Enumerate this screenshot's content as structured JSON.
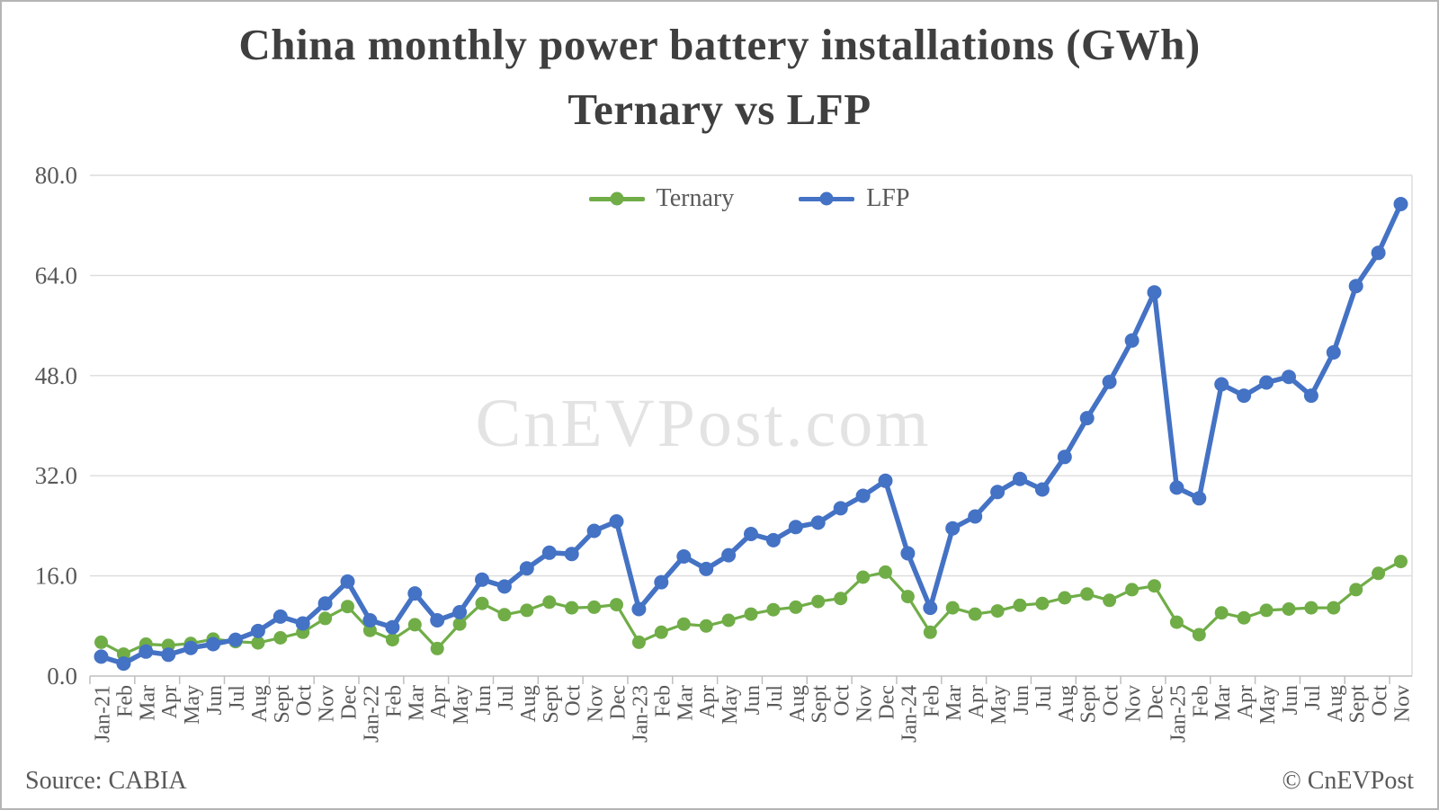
{
  "title": {
    "line1": "China monthly power battery installations (GWh)",
    "line2": "Ternary vs LFP"
  },
  "legend": [
    {
      "label": "Ternary",
      "color": "#70AD47"
    },
    {
      "label": "LFP",
      "color": "#4472C4"
    }
  ],
  "watermark": "CnEVPost.com",
  "footer": {
    "source": "Source: CABIA",
    "copyright": "© CnEVPost"
  },
  "colors": {
    "ternary": "#70AD47",
    "lfp": "#4472C4",
    "grid": "#dcdcdc",
    "axis": "#bfbfbf",
    "tick_text": "#595959",
    "title_text": "#3f3f3f",
    "watermark": "#e3e3e3",
    "border": "#b5b5b5"
  },
  "chart_data": {
    "type": "line",
    "title": "China monthly power battery installations (GWh) Ternary vs LFP",
    "xlabel": "",
    "ylabel": "",
    "ylim": [
      0,
      80
    ],
    "yticks": [
      0,
      16,
      32,
      48,
      64,
      80
    ],
    "ytick_format": "one_decimal",
    "grid": "horizontal",
    "legend_position": "top-center",
    "x_tick_interval": 2,
    "categories": [
      "Jan-21",
      "Feb",
      "Mar",
      "Apr",
      "May",
      "Jun",
      "Jul",
      "Aug",
      "Sept",
      "Oct",
      "Nov",
      "Dec",
      "Jan-22",
      "Feb",
      "Mar",
      "Apr",
      "May",
      "Jun",
      "Jul",
      "Aug",
      "Sept",
      "Oct",
      "Nov",
      "Dec",
      "Jan-23",
      "Feb",
      "Mar",
      "Apr",
      "May",
      "Jun",
      "Jul",
      "Aug",
      "Sept",
      "Oct",
      "Nov",
      "Dec",
      "Jan-24",
      "Feb",
      "Mar",
      "Apr",
      "May",
      "Jun",
      "Jul",
      "Aug",
      "Sept",
      "Oct",
      "Nov",
      "Dec",
      "Jan-25",
      "Feb",
      "Mar",
      "Apr",
      "May",
      "Jun",
      "Jul",
      "Aug",
      "Sept",
      "Oct",
      "Nov"
    ],
    "series": [
      {
        "name": "Ternary",
        "color": "#70AD47",
        "values": [
          5.4,
          3.5,
          5.1,
          4.9,
          5.2,
          5.9,
          5.5,
          5.3,
          6.1,
          7.0,
          9.2,
          11.1,
          7.3,
          5.8,
          8.2,
          4.4,
          8.3,
          11.6,
          9.8,
          10.5,
          11.8,
          10.9,
          11.0,
          11.4,
          5.4,
          7.0,
          8.3,
          8.0,
          8.9,
          9.9,
          10.6,
          11.0,
          11.9,
          12.4,
          15.8,
          16.6,
          12.7,
          7.0,
          10.9,
          9.9,
          10.4,
          11.3,
          11.6,
          12.5,
          13.1,
          12.1,
          13.8,
          14.4,
          8.6,
          6.6,
          10.1,
          9.3,
          10.5,
          10.7,
          10.9,
          10.9,
          13.8,
          16.4,
          18.3
        ]
      },
      {
        "name": "LFP",
        "color": "#4472C4",
        "values": [
          3.1,
          2.0,
          3.9,
          3.4,
          4.5,
          5.1,
          5.8,
          7.2,
          9.5,
          8.4,
          11.6,
          15.1,
          8.9,
          7.8,
          13.2,
          8.9,
          10.2,
          15.4,
          14.3,
          17.2,
          19.7,
          19.5,
          23.2,
          24.7,
          10.7,
          15.0,
          19.1,
          17.1,
          19.3,
          22.7,
          21.7,
          23.8,
          24.5,
          26.8,
          28.8,
          31.2,
          19.6,
          10.9,
          23.6,
          25.5,
          29.4,
          31.5,
          29.8,
          35.0,
          41.2,
          47.0,
          53.6,
          61.3,
          30.1,
          28.4,
          46.6,
          44.8,
          46.9,
          47.8,
          44.8,
          51.7,
          62.3,
          67.6,
          75.4
        ]
      }
    ]
  }
}
